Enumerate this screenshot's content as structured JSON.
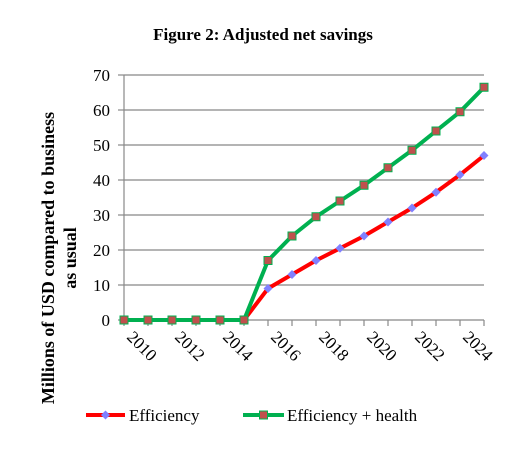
{
  "chart_data": {
    "type": "line",
    "title": "Figure 2: Adjusted net savings",
    "ylabel_lines": [
      "Millions of USD compared to business",
      "as usual"
    ],
    "xlabel": "",
    "x": [
      2010,
      2011,
      2012,
      2013,
      2014,
      2015,
      2016,
      2017,
      2018,
      2019,
      2020,
      2021,
      2022,
      2023,
      2024,
      2025
    ],
    "x_tick_labels": [
      "2010",
      "2012",
      "2014",
      "2016",
      "2018",
      "2020",
      "2022",
      "2024"
    ],
    "x_tick_values": [
      2010,
      2012,
      2014,
      2016,
      2018,
      2020,
      2022,
      2024
    ],
    "xlim": [
      2010,
      2025
    ],
    "ylim": [
      0,
      70
    ],
    "y_ticks": [
      0,
      10,
      20,
      30,
      40,
      50,
      60,
      70
    ],
    "grid": true,
    "legend_position": "bottom",
    "series": [
      {
        "name": "Efficiency",
        "color": "#ff0000",
        "marker_color": "#8080ff",
        "marker": "diamond",
        "values": [
          0,
          0,
          0,
          0,
          0,
          0,
          9,
          13,
          17,
          20.5,
          24,
          28,
          32,
          36.5,
          41.5,
          47
        ]
      },
      {
        "name": "Efficiency + health",
        "color": "#00b050",
        "marker_color": "#c0504d",
        "marker": "square",
        "values": [
          0,
          0,
          0,
          0,
          0,
          0,
          17,
          24,
          29.5,
          34,
          38.5,
          43.5,
          48.5,
          54,
          59.5,
          66.5
        ]
      }
    ]
  }
}
